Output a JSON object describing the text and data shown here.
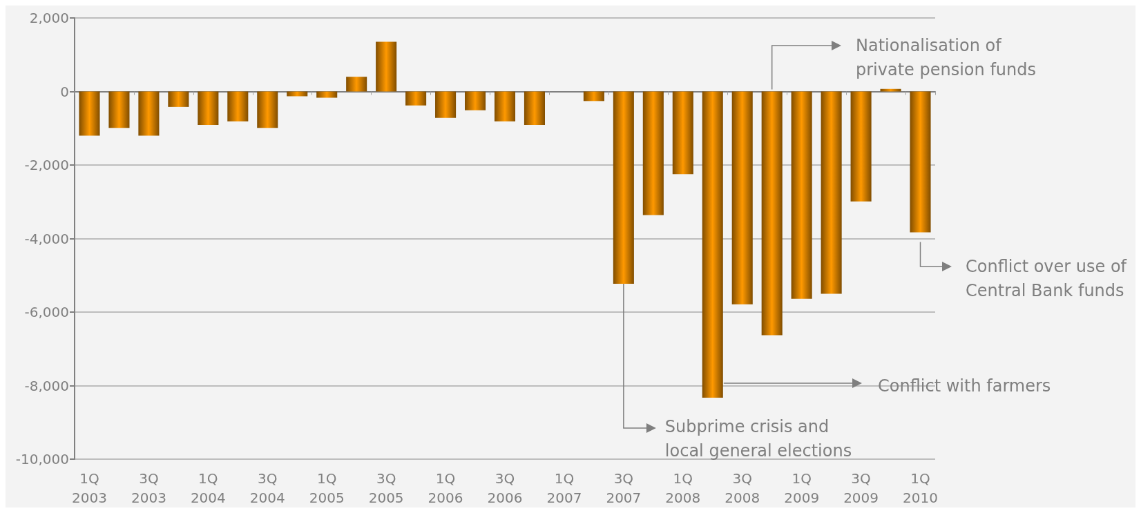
{
  "chart_data": {
    "type": "bar",
    "categories": [
      "1Q\n2003",
      null,
      "3Q\n2003",
      null,
      "1Q\n2004",
      null,
      "3Q\n2004",
      null,
      "1Q\n2005",
      null,
      "3Q\n2005",
      null,
      "1Q\n2006",
      null,
      "3Q\n2006",
      null,
      "1Q\n2007",
      null,
      "3Q\n2007",
      null,
      "1Q\n2008",
      null,
      "3Q\n2008",
      null,
      "1Q\n2009",
      null,
      "3Q\n2009",
      null,
      "1Q\n2010"
    ],
    "values": [
      -1200,
      -990,
      -1200,
      -420,
      -910,
      -810,
      -990,
      -130,
      -170,
      400,
      1350,
      -380,
      -720,
      -510,
      -810,
      -910,
      0,
      -260,
      -5230,
      -3360,
      -2250,
      -8330,
      -5790,
      -6630,
      -5640,
      -5500,
      -2990,
      70,
      -3830
    ],
    "color": "#ff9900",
    "ylim": [
      -10000,
      2000
    ],
    "yticks": [
      {
        "value": -10000,
        "label": "-10,000"
      },
      {
        "value": -8000,
        "label": "-8,000"
      },
      {
        "value": -6000,
        "label": "-6,000"
      },
      {
        "value": -4000,
        "label": "-4,000"
      },
      {
        "value": -2000,
        "label": "-2,000"
      },
      0,
      {
        "value": 2000,
        "label": "2,000"
      }
    ],
    "grid": "y",
    "annotations": [
      "Nationalisation of\nprivate pension funds",
      {
        "text": "Subprime crisis and\nlocal general elections",
        "x": "3Q\n2007",
        "y": -5230
      },
      "Conflict with farmers",
      "Conflict over use of\nCentral Bank funds"
    ]
  }
}
